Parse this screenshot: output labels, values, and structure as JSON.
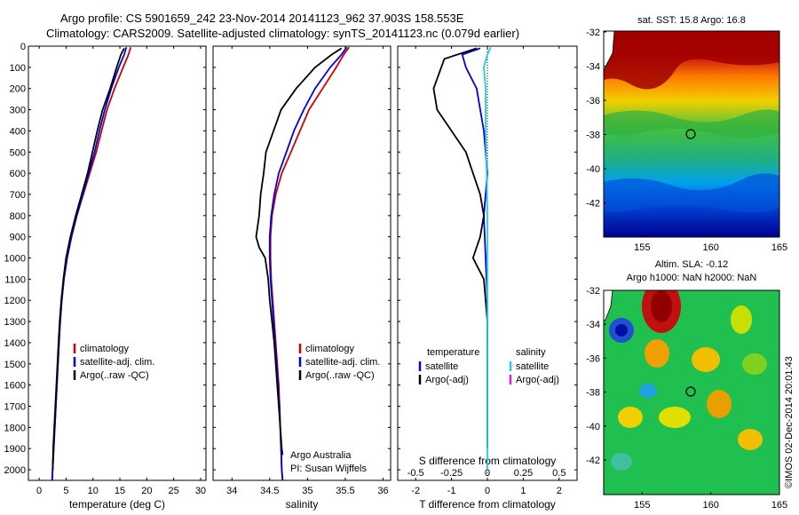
{
  "title_line1": "Argo profile: CS 5901659_242 23-Nov-2014 20141123_962 37.903S 158.553E",
  "title_line2": "Climatology: CARS2009. Satellite-adjusted climatology: synTS_20141123.nc (0.079d earlier)",
  "credit": "©IMOS 02-Dec-2014 20:01:43",
  "chart_data": [
    {
      "type": "line",
      "panel": "temperature",
      "xlabel": "temperature (deg C)",
      "xlim": [
        -2,
        31
      ],
      "xticks": [
        0,
        5,
        10,
        15,
        20,
        25,
        30
      ],
      "ylim": [
        0,
        2050
      ],
      "yticks": [
        0,
        100,
        200,
        300,
        400,
        500,
        600,
        700,
        800,
        900,
        1000,
        1100,
        1200,
        1300,
        1400,
        1500,
        1600,
        1700,
        1800,
        1900,
        2000
      ],
      "legend": [
        "climatology",
        "satellite-adj. clim.",
        "Argo(..raw -QC)"
      ],
      "series": [
        {
          "name": "climatology",
          "color": "#d00000",
          "points": [
            [
              17,
              5
            ],
            [
              16.6,
              40
            ],
            [
              15.6,
              100
            ],
            [
              14,
              200
            ],
            [
              12.6,
              300
            ],
            [
              11.6,
              400
            ],
            [
              10.6,
              500
            ],
            [
              9.4,
              600
            ],
            [
              8.2,
              700
            ],
            [
              7.0,
              800
            ],
            [
              6.0,
              900
            ],
            [
              5.2,
              1000
            ],
            [
              4.6,
              1100
            ],
            [
              4.2,
              1200
            ],
            [
              3.9,
              1300
            ],
            [
              3.7,
              1400
            ],
            [
              3.5,
              1500
            ],
            [
              3.3,
              1600
            ],
            [
              3.1,
              1700
            ],
            [
              2.9,
              1800
            ],
            [
              2.7,
              1900
            ],
            [
              2.5,
              2000
            ],
            [
              2.4,
              2050
            ]
          ]
        },
        {
          "name": "satellite-adj. clim.",
          "color": "#0000e0",
          "points": [
            [
              16.2,
              5
            ],
            [
              15.8,
              40
            ],
            [
              14.8,
              100
            ],
            [
              13.4,
              200
            ],
            [
              12.2,
              300
            ],
            [
              11.2,
              400
            ],
            [
              10.3,
              500
            ],
            [
              9.2,
              600
            ],
            [
              8.1,
              700
            ],
            [
              7.0,
              800
            ],
            [
              6.0,
              900
            ],
            [
              5.2,
              1000
            ],
            [
              4.6,
              1100
            ],
            [
              4.2,
              1200
            ],
            [
              3.9,
              1300
            ],
            [
              3.7,
              1400
            ],
            [
              3.5,
              1500
            ],
            [
              3.3,
              1600
            ],
            [
              3.1,
              1700
            ],
            [
              2.9,
              1800
            ],
            [
              2.7,
              1900
            ],
            [
              2.5,
              2000
            ],
            [
              2.4,
              2050
            ]
          ]
        },
        {
          "name": "Argo(..raw -QC)",
          "color": "#000000",
          "points": [
            [
              15.8,
              10
            ],
            [
              15.2,
              40
            ],
            [
              14.4,
              100
            ],
            [
              13.2,
              200
            ],
            [
              11.8,
              300
            ],
            [
              10.8,
              400
            ],
            [
              9.9,
              500
            ],
            [
              9.0,
              600
            ],
            [
              7.9,
              700
            ],
            [
              6.8,
              800
            ],
            [
              5.8,
              900
            ],
            [
              5.0,
              1000
            ],
            [
              4.5,
              1100
            ],
            [
              4.1,
              1200
            ],
            [
              3.8,
              1300
            ],
            [
              3.6,
              1400
            ],
            [
              3.4,
              1500
            ],
            [
              3.2,
              1600
            ],
            [
              3.0,
              1700
            ],
            [
              2.8,
              1800
            ],
            [
              2.6,
              1900
            ],
            [
              2.5,
              2000
            ]
          ]
        }
      ]
    },
    {
      "type": "line",
      "panel": "salinity",
      "xlabel": "salinity",
      "xlim": [
        33.75,
        36.1
      ],
      "xticks": [
        34,
        34.5,
        35,
        35.5,
        36
      ],
      "ylim": [
        0,
        2050
      ],
      "legend": [
        "climatology",
        "satellite-adj. clim.",
        "Argo(..raw -QC)"
      ],
      "annotations": [
        "Argo Australia",
        "PI: Susan Wijffels"
      ],
      "series": [
        {
          "name": "climatology",
          "color": "#d00000",
          "points": [
            [
              35.55,
              5
            ],
            [
              35.48,
              40
            ],
            [
              35.38,
              100
            ],
            [
              35.2,
              200
            ],
            [
              35.02,
              300
            ],
            [
              34.9,
              400
            ],
            [
              34.78,
              500
            ],
            [
              34.66,
              600
            ],
            [
              34.58,
              700
            ],
            [
              34.53,
              800
            ],
            [
              34.51,
              900
            ],
            [
              34.51,
              1000
            ],
            [
              34.52,
              1100
            ],
            [
              34.54,
              1200
            ],
            [
              34.56,
              1300
            ],
            [
              34.58,
              1400
            ],
            [
              34.6,
              1500
            ],
            [
              34.62,
              1600
            ],
            [
              34.63,
              1700
            ],
            [
              34.64,
              1800
            ],
            [
              34.65,
              1900
            ],
            [
              34.66,
              2000
            ],
            [
              34.67,
              2050
            ]
          ]
        },
        {
          "name": "satellite-adj. clim.",
          "color": "#0000e0",
          "points": [
            [
              35.52,
              5
            ],
            [
              35.45,
              40
            ],
            [
              35.3,
              100
            ],
            [
              35.1,
              200
            ],
            [
              34.95,
              300
            ],
            [
              34.82,
              400
            ],
            [
              34.72,
              500
            ],
            [
              34.62,
              600
            ],
            [
              34.56,
              700
            ],
            [
              34.52,
              800
            ],
            [
              34.5,
              900
            ],
            [
              34.5,
              1000
            ],
            [
              34.51,
              1100
            ],
            [
              34.53,
              1200
            ],
            [
              34.55,
              1300
            ],
            [
              34.57,
              1400
            ],
            [
              34.59,
              1500
            ],
            [
              34.61,
              1600
            ],
            [
              34.63,
              1700
            ],
            [
              34.64,
              1800
            ],
            [
              34.65,
              1900
            ],
            [
              34.66,
              2000
            ],
            [
              34.67,
              2050
            ]
          ]
        },
        {
          "name": "Argo(..raw -QC)",
          "color": "#000000",
          "points": [
            [
              35.45,
              10
            ],
            [
              35.32,
              40
            ],
            [
              35.1,
              100
            ],
            [
              34.85,
              200
            ],
            [
              34.65,
              300
            ],
            [
              34.55,
              400
            ],
            [
              34.45,
              500
            ],
            [
              34.42,
              600
            ],
            [
              34.38,
              700
            ],
            [
              34.36,
              800
            ],
            [
              34.32,
              900
            ],
            [
              34.36,
              950
            ],
            [
              34.44,
              1000
            ],
            [
              34.48,
              1100
            ],
            [
              34.5,
              1200
            ],
            [
              34.53,
              1300
            ],
            [
              34.56,
              1400
            ],
            [
              34.58,
              1500
            ],
            [
              34.6,
              1600
            ],
            [
              34.62,
              1700
            ],
            [
              34.64,
              1800
            ],
            [
              34.66,
              1900
            ],
            [
              34.67,
              1930
            ]
          ]
        }
      ]
    },
    {
      "type": "line",
      "panel": "difference",
      "xlabel": "T difference from climatology",
      "top_axis_label": "S difference from climatology",
      "xlim": [
        -2.5,
        2.5
      ],
      "xticks": [
        -2,
        -1,
        0,
        1,
        2
      ],
      "top_xticks": [
        "-0.5",
        "-0.25",
        "0",
        "0.25",
        "0.5"
      ],
      "ylim": [
        0,
        2050
      ],
      "legend_temperature_title": "temperature",
      "legend_salinity_title": "salinity",
      "legend_temperature": [
        "satellite",
        "Argo(-adj)"
      ],
      "legend_salinity": [
        "satellite",
        "Argo(-adj)"
      ],
      "series": [
        {
          "name": "temperature satellite",
          "color": "#0000e0",
          "points": [
            [
              -0.2,
              10
            ],
            [
              -0.7,
              40
            ],
            [
              -0.6,
              100
            ],
            [
              -0.3,
              200
            ],
            [
              -0.1,
              400
            ],
            [
              0,
              600
            ],
            [
              -0.1,
              800
            ],
            [
              -0.05,
              1000
            ],
            [
              0,
              1200
            ],
            [
              0,
              1400
            ],
            [
              0,
              1600
            ],
            [
              0,
              1800
            ],
            [
              0,
              1900
            ]
          ]
        },
        {
          "name": "temperature Argo(-adj)",
          "color": "#000000",
          "points": [
            [
              -0.3,
              10
            ],
            [
              -1.2,
              60
            ],
            [
              -1.5,
              200
            ],
            [
              -1.4,
              300
            ],
            [
              -1.0,
              400
            ],
            [
              -0.6,
              500
            ],
            [
              -0.4,
              600
            ],
            [
              -0.2,
              700
            ],
            [
              -0.1,
              800
            ],
            [
              -0.2,
              900
            ],
            [
              -0.4,
              1000
            ],
            [
              -0.1,
              1100
            ],
            [
              -0.05,
              1200
            ],
            [
              0,
              1300
            ],
            [
              0,
              1500
            ],
            [
              0,
              1700
            ],
            [
              0,
              1900
            ]
          ]
        },
        {
          "name": "salinity satellite",
          "color": "#20d0e0",
          "points": [
            [
              0.1,
              5
            ],
            [
              0,
              40
            ],
            [
              -0.1,
              100
            ],
            [
              -0.05,
              200
            ],
            [
              -0.05,
              400
            ],
            [
              -0.02,
              600
            ],
            [
              0,
              800
            ],
            [
              0,
              1000
            ],
            [
              0,
              1200
            ],
            [
              0,
              1400
            ],
            [
              0,
              1600
            ],
            [
              0,
              1800
            ],
            [
              0,
              2000
            ]
          ]
        }
      ]
    }
  ],
  "maps": {
    "sst": {
      "title": "sat. SST: 15.8  Argo: 16.8",
      "xticks": [
        "155",
        "160",
        "165"
      ],
      "yticks": [
        "-32",
        "-34",
        "-36",
        "-38",
        "-40",
        "-42"
      ]
    },
    "sla": {
      "title_line1": "Altim. SLA: -0.12",
      "title_line2": "Argo h1000: NaN h2000: NaN",
      "xticks": [
        "155",
        "160",
        "165"
      ],
      "yticks": [
        "-32",
        "-34",
        "-36",
        "-38",
        "-40",
        "-42"
      ]
    }
  }
}
